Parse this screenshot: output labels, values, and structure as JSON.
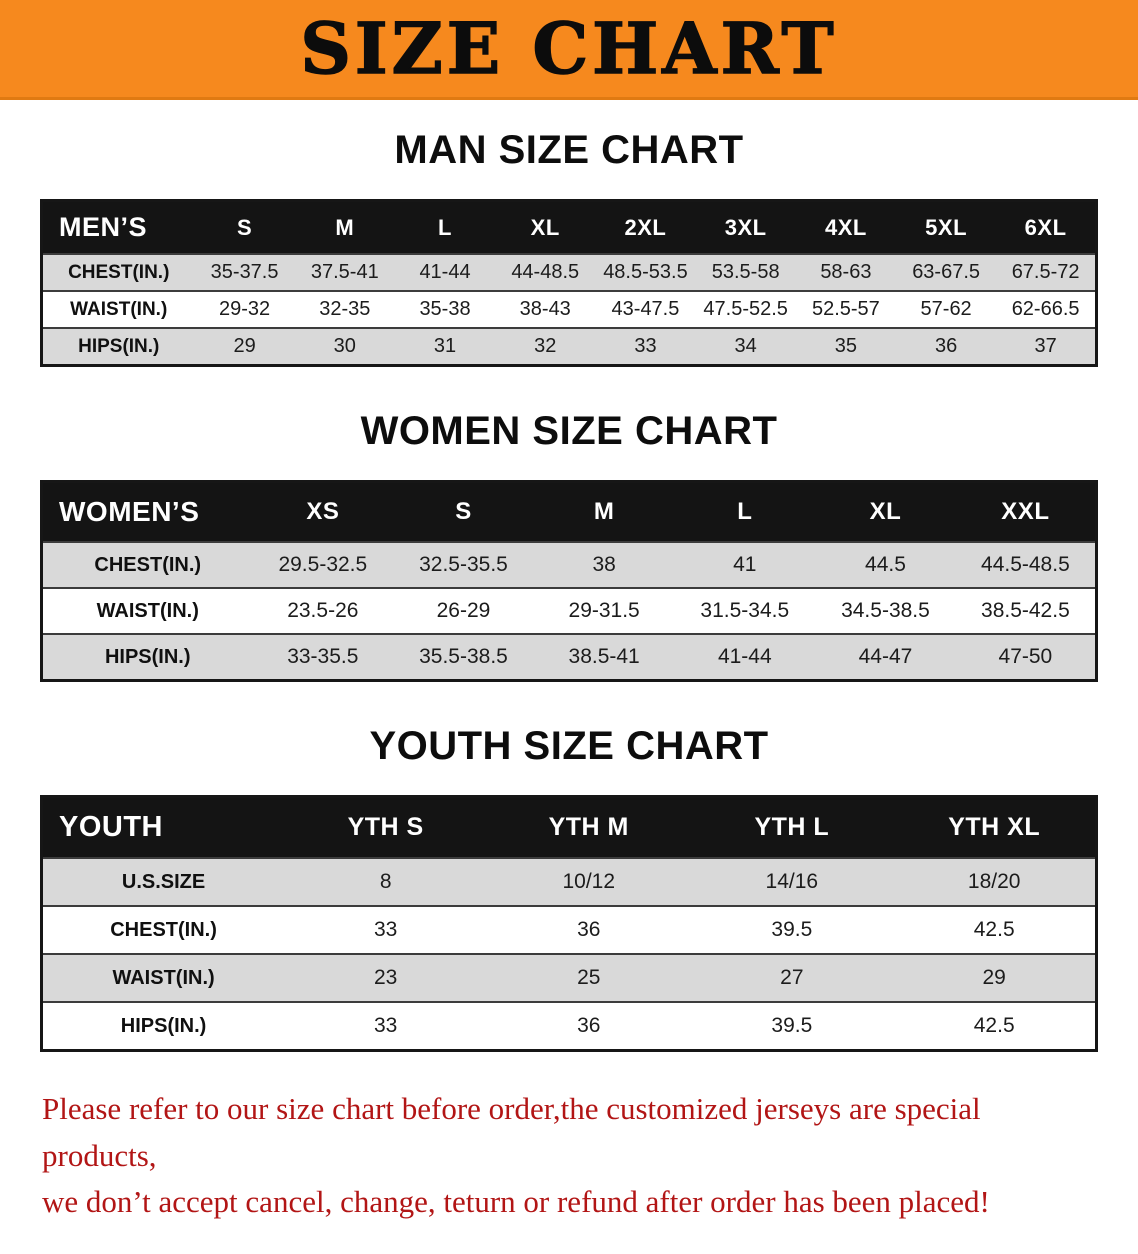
{
  "banner": {
    "title": "SIZE CHART"
  },
  "theme": {
    "banner_bg": "#f6891e",
    "header_bg": "#141414",
    "header_text": "#ffffff",
    "shaded_row_bg": "#d9d9d9",
    "notice_color": "#b21515"
  },
  "sections": [
    {
      "id": "men",
      "heading": "MAN SIZE CHART",
      "table": {
        "header": [
          "MEN’S",
          "S",
          "M",
          "L",
          "XL",
          "2XL",
          "3XL",
          "4XL",
          "5XL",
          "6XL"
        ],
        "rows": [
          [
            "CHEST(IN.)",
            "35-37.5",
            "37.5-41",
            "41-44",
            "44-48.5",
            "48.5-53.5",
            "53.5-58",
            "58-63",
            "63-67.5",
            "67.5-72"
          ],
          [
            "WAIST(IN.)",
            "29-32",
            "32-35",
            "35-38",
            "38-43",
            "43-47.5",
            "47.5-52.5",
            "52.5-57",
            "57-62",
            "62-66.5"
          ],
          [
            "HIPS(IN.)",
            "29",
            "30",
            "31",
            "32",
            "33",
            "34",
            "35",
            "36",
            "37"
          ]
        ]
      }
    },
    {
      "id": "women",
      "heading": "WOMEN SIZE CHART",
      "table": {
        "header": [
          "WOMEN’S",
          "XS",
          "S",
          "M",
          "L",
          "XL",
          "XXL"
        ],
        "rows": [
          [
            "CHEST(IN.)",
            "29.5-32.5",
            "32.5-35.5",
            "38",
            "41",
            "44.5",
            "44.5-48.5"
          ],
          [
            "WAIST(IN.)",
            "23.5-26",
            "26-29",
            "29-31.5",
            "31.5-34.5",
            "34.5-38.5",
            "38.5-42.5"
          ],
          [
            "HIPS(IN.)",
            "33-35.5",
            "35.5-38.5",
            "38.5-41",
            "41-44",
            "44-47",
            "47-50"
          ]
        ]
      }
    },
    {
      "id": "youth",
      "heading": "YOUTH SIZE CHART",
      "table": {
        "header": [
          "YOUTH",
          "YTH S",
          "YTH M",
          "YTH L",
          "YTH XL"
        ],
        "rows": [
          [
            "U.S.SIZE",
            "8",
            "10/12",
            "14/16",
            "18/20"
          ],
          [
            "CHEST(IN.)",
            "33",
            "36",
            "39.5",
            "42.5"
          ],
          [
            "WAIST(IN.)",
            "23",
            "25",
            "27",
            "29"
          ],
          [
            "HIPS(IN.)",
            "33",
            "36",
            "39.5",
            "42.5"
          ]
        ]
      }
    }
  ],
  "notice": {
    "line1": "Please refer to our size chart before order,the customized jerseys are special products,",
    "line2": "we don’t accept cancel, change, teturn or refund after order has been placed!"
  }
}
